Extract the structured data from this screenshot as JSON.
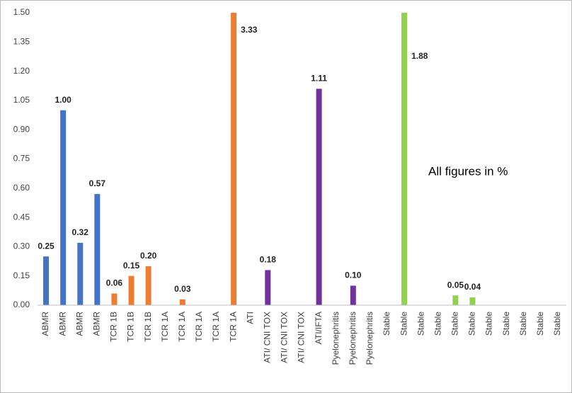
{
  "chart_data": {
    "type": "bar",
    "categories": [
      "ABMR",
      "ABMR",
      "ABMR",
      "ABMR",
      "TCR 1B",
      "TCR 1B",
      "TCR 1B",
      "TCR 1A",
      "TCR 1A",
      "TCR 1A",
      "TCR 1A",
      "TCR 1A",
      "ATI",
      "ATI/ CNI TOX",
      "ATI/ CNI TOX",
      "ATI/ CNI TOX",
      "ATI/IFTA",
      "Pyelonephritis",
      "Pyelonephritis",
      "Pyelonephritis",
      "Stable",
      "Stable",
      "Stable",
      "Stable",
      "Stable",
      "Stable",
      "Stable",
      "Stable",
      "Stable",
      "Stable",
      "Stable"
    ],
    "values": [
      0.25,
      1.0,
      0.32,
      0.57,
      0.06,
      0.15,
      0.2,
      0,
      0.03,
      0,
      0,
      3.33,
      0,
      0.18,
      0,
      0,
      1.11,
      0,
      0.1,
      0,
      0,
      1.88,
      0,
      0,
      0.05,
      0.04,
      0,
      0,
      0,
      0,
      0
    ],
    "value_labels": [
      "0.25",
      "1.00",
      "0.32",
      "0.57",
      "0.06",
      "0.15",
      "0.20",
      null,
      "0.03",
      null,
      null,
      "3.33",
      null,
      "0.18",
      null,
      null,
      "1.11",
      null,
      "0.10",
      null,
      null,
      "1.88",
      null,
      null,
      "0.05",
      "0.04",
      null,
      null,
      null,
      null,
      null
    ],
    "colors": [
      "#4472c4",
      "#4472c4",
      "#4472c4",
      "#4472c4",
      "#ed7d31",
      "#ed7d31",
      "#ed7d31",
      "#ed7d31",
      "#ed7d31",
      "#ed7d31",
      "#ed7d31",
      "#ed7d31",
      "#ed7d31",
      "#7030a0",
      "#7030a0",
      "#7030a0",
      "#7030a0",
      "#7030a0",
      "#7030a0",
      "#7030a0",
      "#92d050",
      "#92d050",
      "#92d050",
      "#92d050",
      "#92d050",
      "#92d050",
      "#92d050",
      "#92d050",
      "#92d050",
      "#92d050",
      "#92d050"
    ],
    "ylim": [
      0,
      1.5
    ],
    "yticks": [
      {
        "value": 0,
        "label": "0.00"
      },
      {
        "value": 0.15,
        "label": "0.15"
      },
      {
        "value": 0.3,
        "label": "0.30"
      },
      {
        "value": 0.45,
        "label": "0.45"
      },
      {
        "value": 0.6,
        "label": "0.60"
      },
      {
        "value": 0.75,
        "label": "0.75"
      },
      {
        "value": 0.9,
        "label": "0.90"
      },
      {
        "value": 1.05,
        "label": "1.05"
      },
      {
        "value": 1.2,
        "label": "1.20"
      },
      {
        "value": 1.35,
        "label": "1.35"
      },
      {
        "value": 1.5,
        "label": "1.50"
      }
    ],
    "annotation": "All figures in %"
  }
}
